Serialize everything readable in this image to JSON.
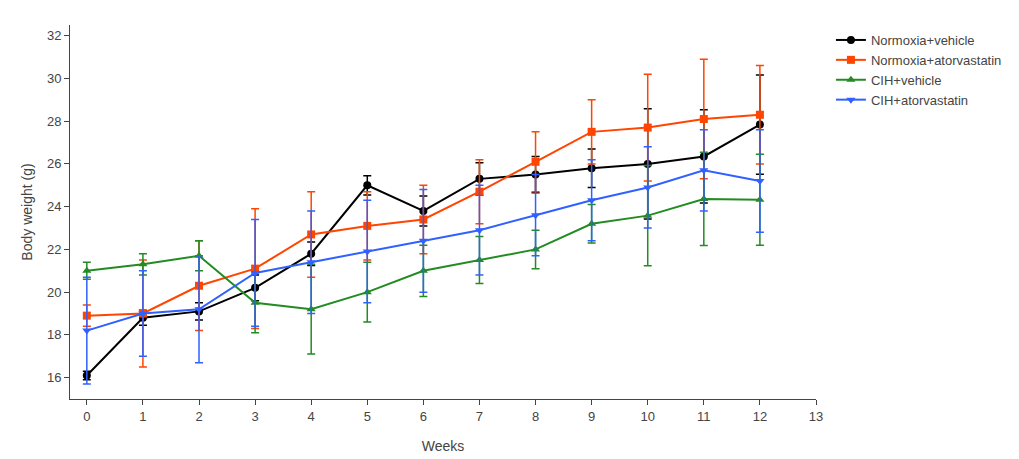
{
  "chart_data": {
    "type": "line",
    "xlabel": "Weeks",
    "ylabel": "Body weight (g)",
    "x": [
      0,
      1,
      2,
      3,
      4,
      5,
      6,
      7,
      8,
      9,
      10,
      11,
      12
    ],
    "series": [
      {
        "name": "Normoxia+vehicle",
        "color": "#000000",
        "marker": "circle",
        "values": [
          16.1,
          18.8,
          19.1,
          20.2,
          21.8,
          25.0,
          23.8,
          25.3,
          25.5,
          25.8,
          26.0,
          26.35,
          27.84
        ],
        "errors": [
          0.2,
          0.35,
          0.4,
          0.6,
          0.55,
          0.45,
          0.7,
          0.75,
          0.85,
          0.9,
          2.58,
          2.18,
          2.32
        ]
      },
      {
        "name": "Normoxia+atorvastatin",
        "color": "#FF4500",
        "marker": "square",
        "values": [
          18.9,
          19.0,
          20.3,
          21.1,
          22.7,
          23.1,
          23.4,
          24.7,
          26.1,
          27.5,
          27.7,
          28.1,
          28.3
        ],
        "errors": [
          0.5,
          2.5,
          2.1,
          2.8,
          2.0,
          1.6,
          1.6,
          1.5,
          1.4,
          1.5,
          2.5,
          2.8,
          2.3
        ]
      },
      {
        "name": "CIH+vehicle",
        "color": "#228B22",
        "marker": "triangle-up",
        "values": [
          21.0,
          21.3,
          21.7,
          19.5,
          19.2,
          20.0,
          21.0,
          21.5,
          22.0,
          23.2,
          23.58,
          24.36,
          24.32
        ],
        "errors": [
          0.4,
          0.5,
          0.7,
          1.4,
          2.1,
          1.4,
          1.2,
          1.1,
          0.9,
          0.9,
          2.35,
          2.18,
          2.13
        ]
      },
      {
        "name": "CIH+atorvastatin",
        "color": "#3060FF",
        "marker": "triangle-down",
        "values": [
          18.2,
          19.0,
          19.2,
          20.9,
          21.4,
          21.9,
          22.4,
          22.9,
          23.6,
          24.3,
          24.9,
          25.7,
          25.2
        ],
        "errors": [
          2.5,
          2.0,
          2.5,
          2.5,
          2.4,
          2.4,
          2.4,
          2.1,
          1.9,
          1.9,
          1.9,
          1.9,
          2.4
        ]
      }
    ],
    "xlim": [
      -0.3,
      13.0
    ],
    "ylim": [
      15.0,
      32.5
    ],
    "xticks": [
      0,
      1,
      2,
      3,
      4,
      5,
      6,
      7,
      8,
      9,
      10,
      11,
      12,
      13
    ],
    "yticks": [
      16,
      18,
      20,
      22,
      24,
      26,
      28,
      30,
      32
    ],
    "grid": false,
    "legend": "right"
  }
}
